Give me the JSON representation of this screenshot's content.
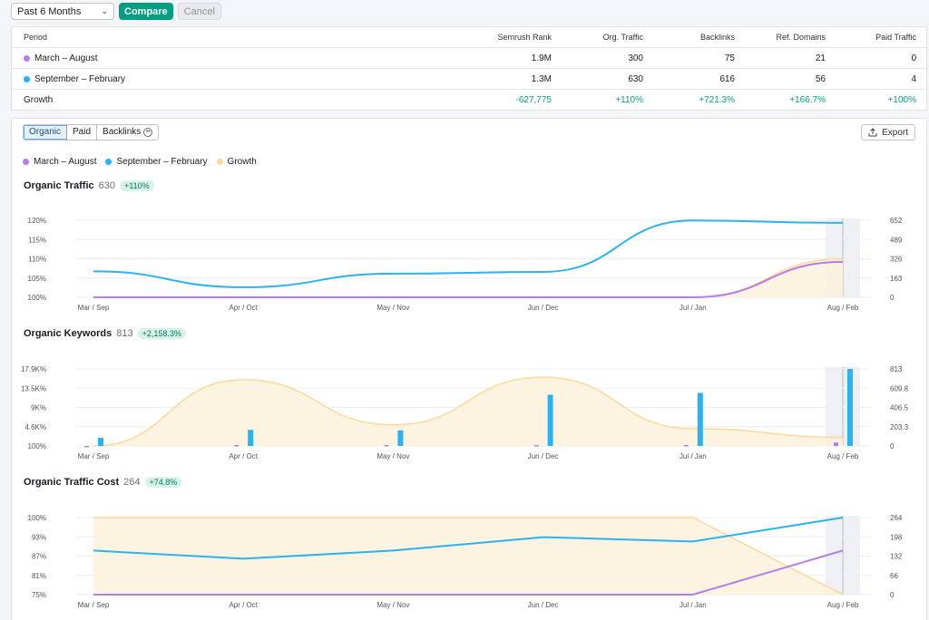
{
  "toolbar": {
    "period_select": "Past 6 Months",
    "compare_label": "Compare",
    "cancel_label": "Cancel"
  },
  "summary": {
    "headers": [
      "Period",
      "Semrush Rank",
      "Org. Traffic",
      "Backlinks",
      "Ref. Domains",
      "Paid Traffic"
    ],
    "rows": [
      {
        "period": "March – August",
        "color": "#b77de8",
        "rank": "1.9M",
        "org_traffic": "300",
        "backlinks": "75",
        "ref_domains": "21",
        "paid_traffic": "0"
      },
      {
        "period": "September – February",
        "color": "#2bb2f0",
        "rank": "1.3M",
        "org_traffic": "630",
        "backlinks": "616",
        "ref_domains": "56",
        "paid_traffic": "4"
      },
      {
        "period": "Growth",
        "rank": "-627,775",
        "org_traffic": "+110%",
        "backlinks": "+721.3%",
        "ref_domains": "+166.7%",
        "paid_traffic": "+100%"
      }
    ]
  },
  "tabs": [
    {
      "label": "Organic",
      "active": true
    },
    {
      "label": "Paid",
      "active": false
    },
    {
      "label": "Backlinks",
      "active": false
    }
  ],
  "export_label": "Export",
  "legend": [
    {
      "label": "March – August",
      "color": "#b77de8"
    },
    {
      "label": "September – February",
      "color": "#2bb2f0"
    },
    {
      "label": "Growth",
      "color": "#fcd99a"
    }
  ],
  "charts": [
    {
      "title": "Organic Traffic",
      "value": "630",
      "badge": "+110%"
    },
    {
      "title": "Organic Keywords",
      "value": "813",
      "badge": "+2,158.3%"
    },
    {
      "title": "Organic Traffic Cost",
      "value": "264",
      "badge": "+74.8%"
    }
  ],
  "chart_data": [
    {
      "type": "line",
      "categories": [
        "Mar / Sep",
        "Apr / Oct",
        "May / Nov",
        "Jun / Dec",
        "Jul / Jan",
        "Aug / Feb"
      ],
      "left_ticks": [
        "120%",
        "115%",
        "110%",
        "105%",
        "100%"
      ],
      "right_ticks": [
        "652",
        "489",
        "326",
        "163",
        "0"
      ],
      "ylim_right": [
        0,
        652
      ],
      "ylim_left": [
        100,
        120
      ],
      "series": [
        {
          "name": "March – August",
          "values": [
            0,
            0,
            0,
            0,
            0,
            300
          ]
        },
        {
          "name": "September – February",
          "values": [
            220,
            85,
            200,
            215,
            650,
            630
          ]
        },
        {
          "name": "Growth",
          "values": [
            100,
            100,
            100,
            100,
            100,
            110
          ]
        }
      ]
    },
    {
      "type": "bar",
      "categories": [
        "Mar / Sep",
        "Apr / Oct",
        "May / Nov",
        "Jun / Dec",
        "Jul / Jan",
        "Aug / Feb"
      ],
      "left_ticks": [
        "17.9K%",
        "13.5K%",
        "9K%",
        "4.6K%",
        "100%"
      ],
      "right_ticks": [
        "813",
        "609.8",
        "406.5",
        "203.3",
        "0"
      ],
      "ylim_right": [
        0,
        813
      ],
      "ylim_left": [
        100,
        17900
      ],
      "series": [
        {
          "name": "March – August",
          "values": [
            0,
            10,
            10,
            10,
            10,
            36
          ]
        },
        {
          "name": "September – February",
          "values": [
            85,
            170,
            165,
            540,
            560,
            813
          ]
        },
        {
          "name": "Growth",
          "values": [
            100,
            15400,
            5000,
            16000,
            4100,
            2100
          ]
        }
      ]
    },
    {
      "type": "line",
      "categories": [
        "Mar / Sep",
        "Apr / Oct",
        "May / Nov",
        "Jun / Dec",
        "Jul / Jan",
        "Aug / Feb"
      ],
      "left_ticks": [
        "100%",
        "93%",
        "87%",
        "81%",
        "75%"
      ],
      "right_ticks": [
        "264",
        "198",
        "132",
        "66",
        "0"
      ],
      "ylim_right": [
        0,
        264
      ],
      "ylim_left": [
        75,
        100
      ],
      "series": [
        {
          "name": "March – August",
          "values": [
            0,
            0,
            0,
            0,
            0,
            151
          ]
        },
        {
          "name": "September – February",
          "values": [
            151,
            123,
            151,
            197,
            182,
            264
          ]
        },
        {
          "name": "Growth",
          "values": [
            100,
            100,
            100,
            100,
            100,
            75
          ]
        }
      ]
    }
  ]
}
